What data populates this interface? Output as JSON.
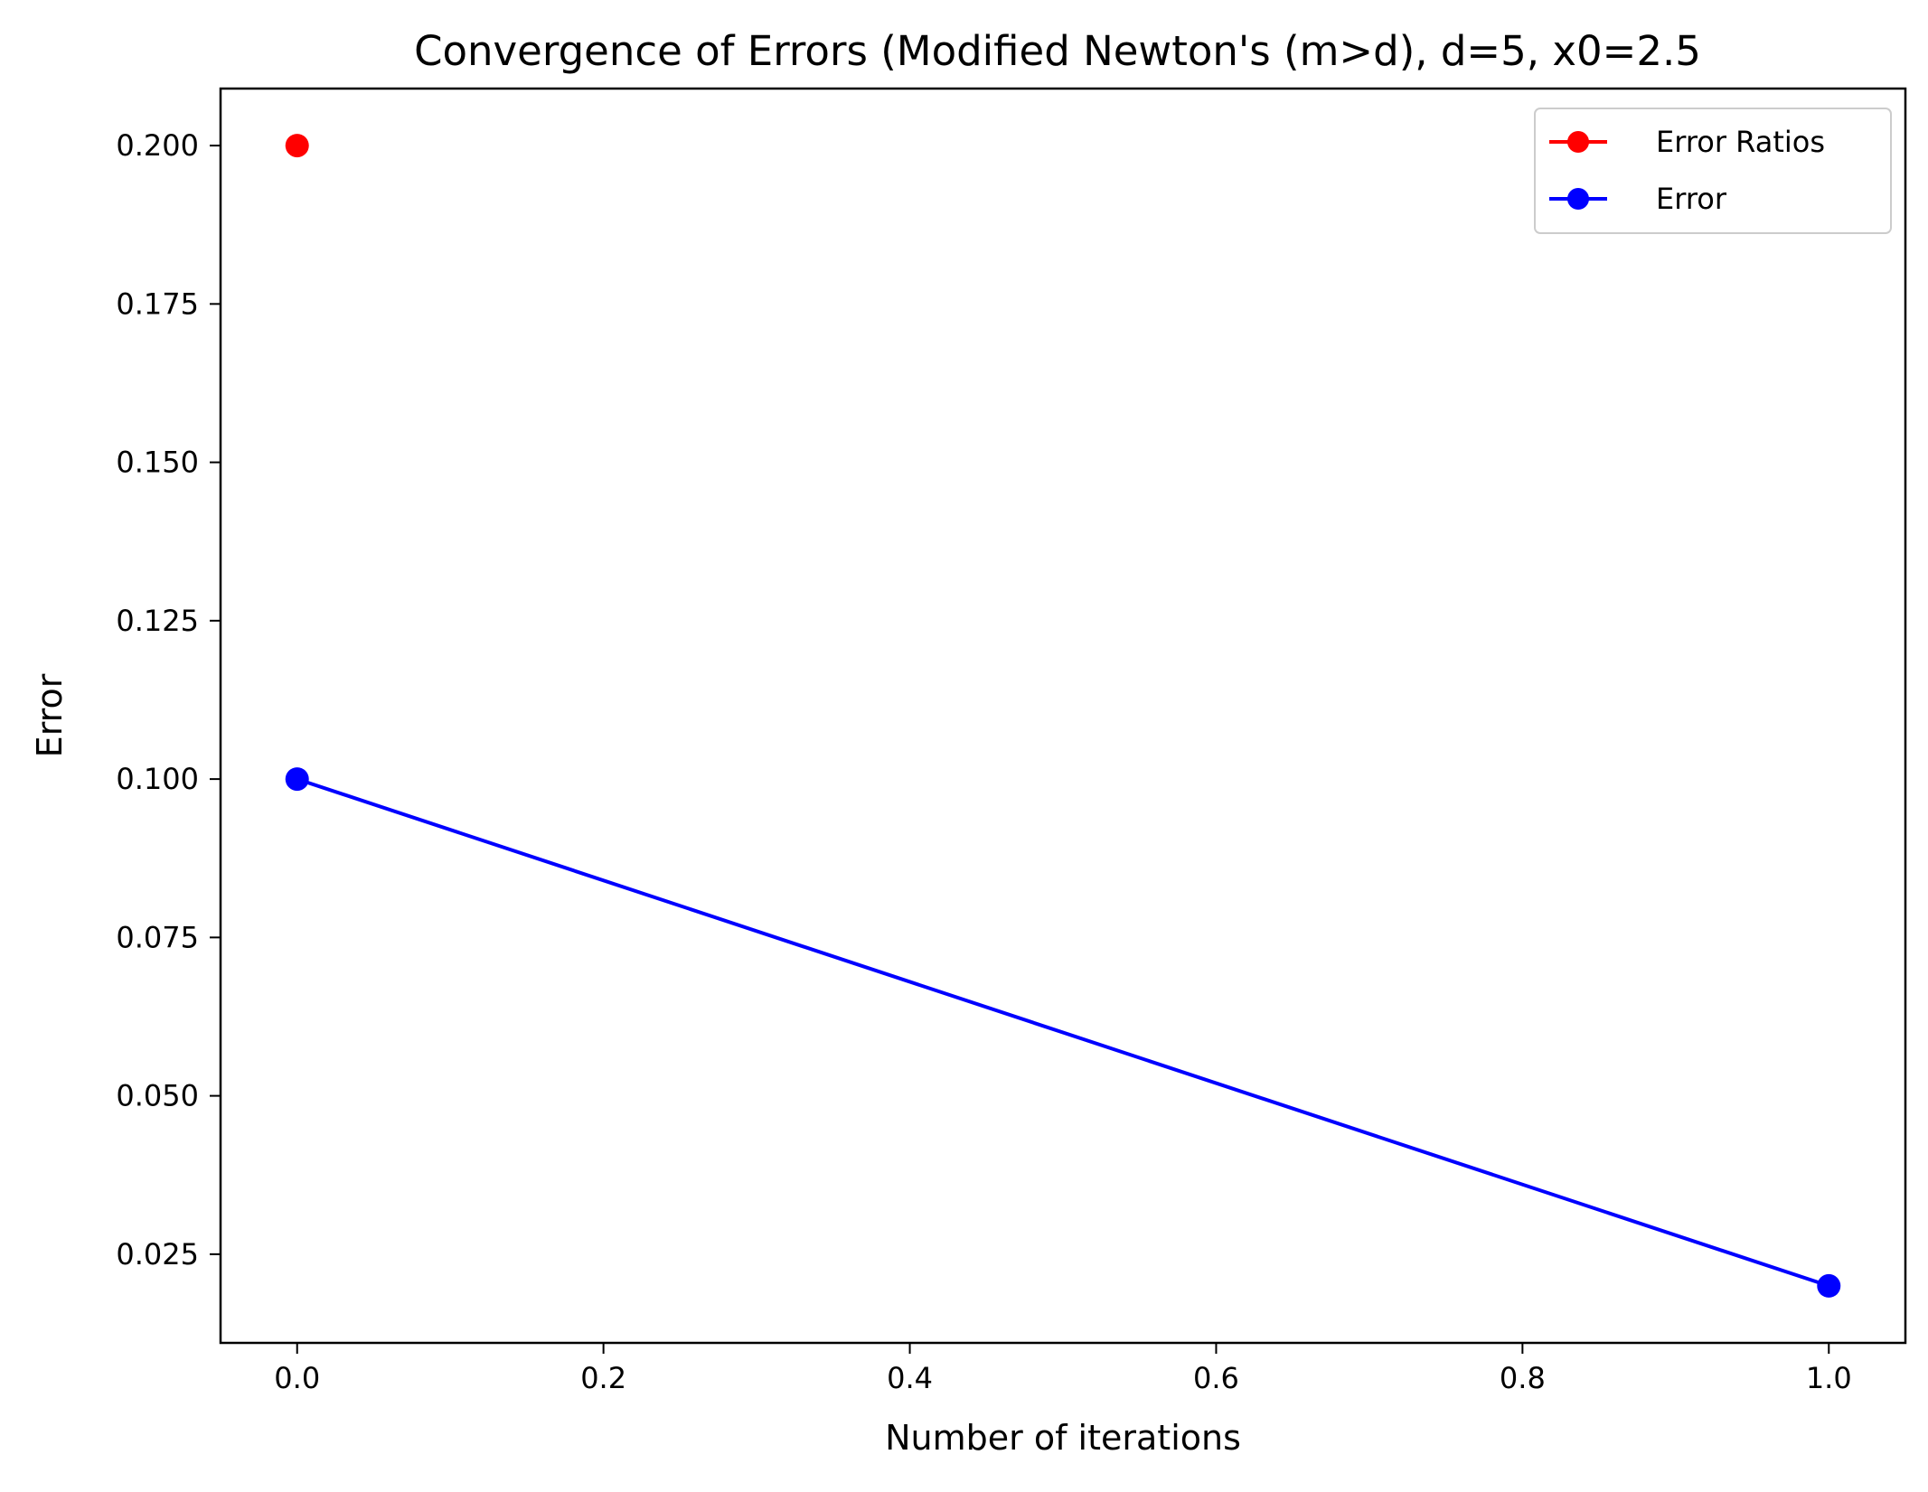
{
  "chart_data": {
    "type": "line",
    "title": "Convergence of Errors (Modified Newton's (m>d), d=5, x0=2.5",
    "xlabel": "Number of iterations",
    "ylabel": "Error",
    "xlim": [
      -0.05,
      1.05
    ],
    "ylim": [
      0.011,
      0.209
    ],
    "x_ticks": [
      0.0,
      0.2,
      0.4,
      0.6,
      0.8,
      1.0
    ],
    "x_tick_labels": [
      "0.0",
      "0.2",
      "0.4",
      "0.6",
      "0.8",
      "1.0"
    ],
    "y_ticks": [
      0.025,
      0.05,
      0.075,
      0.1,
      0.125,
      0.15,
      0.175,
      0.2
    ],
    "y_tick_labels": [
      "0.025",
      "0.050",
      "0.075",
      "0.100",
      "0.125",
      "0.150",
      "0.175",
      "0.200"
    ],
    "grid": false,
    "legend_position": "top-right",
    "series": [
      {
        "name": "Error Ratios",
        "color": "#ff0000",
        "marker": "circle",
        "x": [
          0
        ],
        "y": [
          0.2
        ]
      },
      {
        "name": "Error",
        "color": "#0000ff",
        "marker": "circle",
        "x": [
          0,
          1
        ],
        "y": [
          0.1,
          0.02
        ]
      }
    ]
  }
}
